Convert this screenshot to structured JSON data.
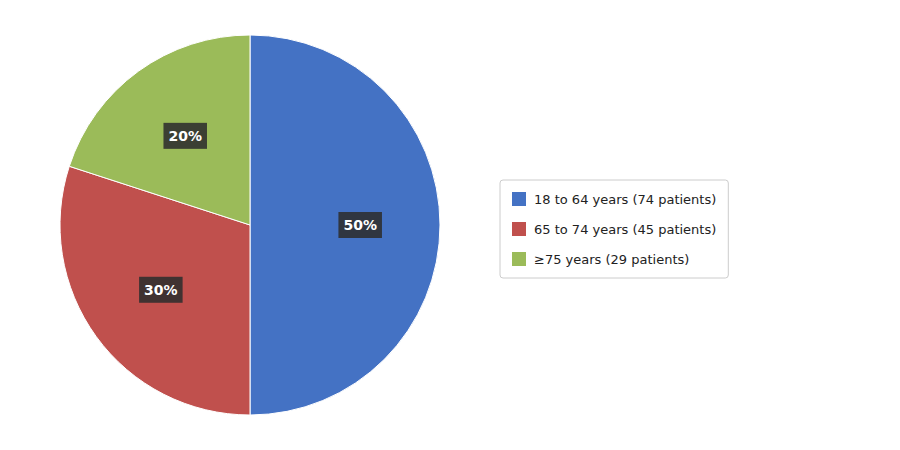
{
  "chart_data": {
    "type": "pie",
    "categories": [
      "18 to 64 years (74 patients)",
      "65 to 74 years (45 patients)",
      "≥75 years (29 patients)"
    ],
    "values": [
      50,
      30,
      20
    ],
    "value_labels": [
      "50%",
      "30%",
      "20%"
    ],
    "colors": [
      "#4472C4",
      "#C0504D",
      "#9BBB59"
    ],
    "data_labels": true,
    "legend": "right"
  }
}
